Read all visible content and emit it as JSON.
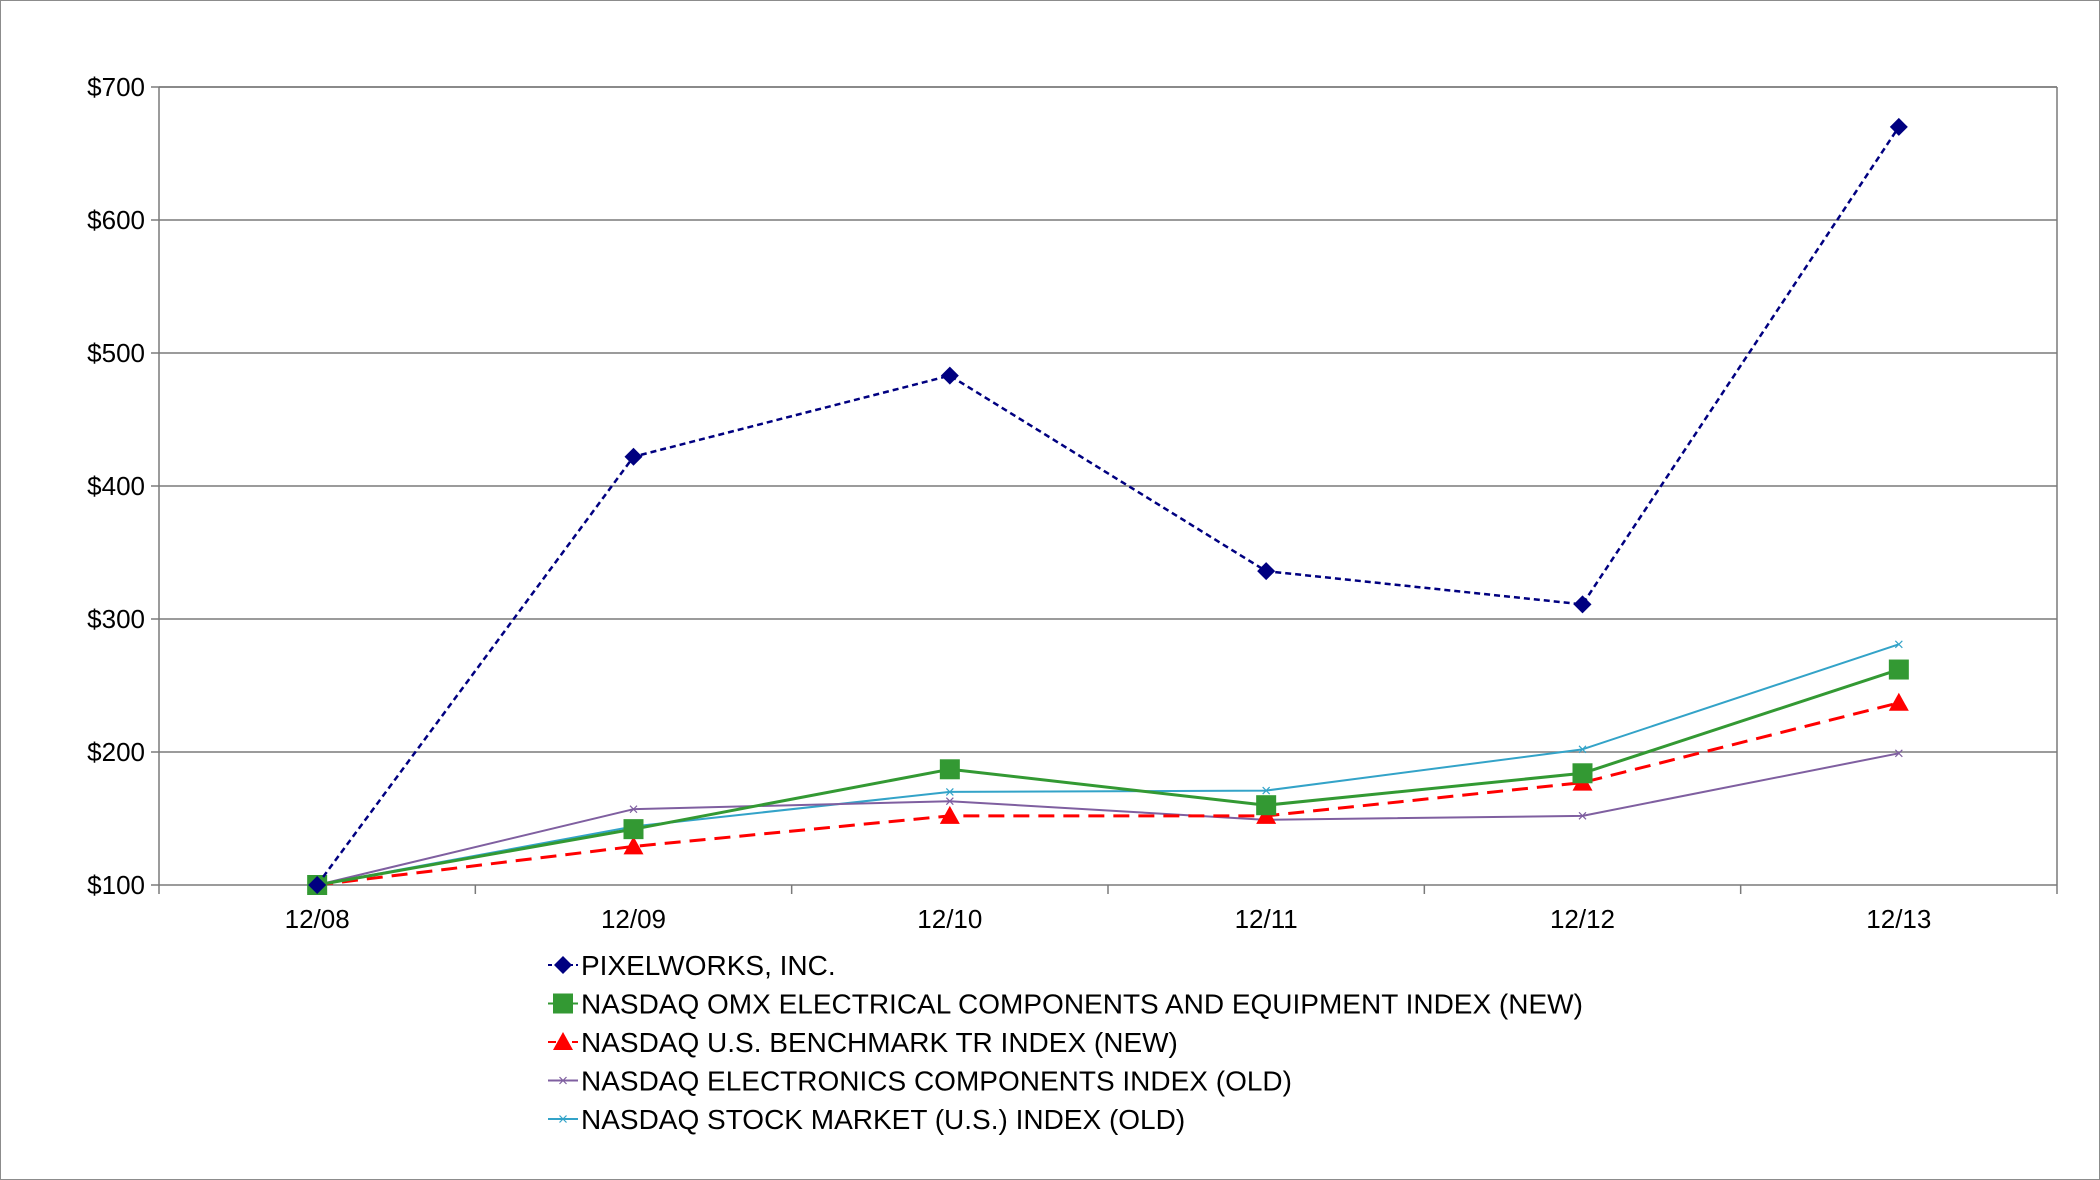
{
  "chart_data": {
    "type": "line",
    "title": "",
    "xlabel": "",
    "ylabel": "",
    "categories": [
      "12/08",
      "12/09",
      "12/10",
      "12/11",
      "12/12",
      "12/13"
    ],
    "y_tick_labels": [
      "$100",
      "$200",
      "$300",
      "$400",
      "$500",
      "$600",
      "$700"
    ],
    "y_ticks": [
      100,
      200,
      300,
      400,
      500,
      600,
      700
    ],
    "ylim": [
      100,
      700
    ],
    "grid": true,
    "legend_position": "bottom",
    "series": [
      {
        "name": "PIXELWORKS, INC.",
        "values": [
          100,
          422,
          483,
          336,
          311,
          670
        ],
        "color": "#000080",
        "line_style": "dotted",
        "marker": "diamond"
      },
      {
        "name": "NASDAQ OMX ELECTRICAL COMPONENTS AND EQUIPMENT INDEX (NEW)",
        "values": [
          100,
          142,
          187,
          160,
          184,
          262
        ],
        "color": "#339933",
        "line_style": "solid",
        "marker": "square"
      },
      {
        "name": "NASDAQ U.S. BENCHMARK TR INDEX (NEW)",
        "values": [
          100,
          129,
          152,
          152,
          177,
          237
        ],
        "color": "#ff0000",
        "line_style": "dashed",
        "marker": "triangle"
      },
      {
        "name": "NASDAQ ELECTRONICS COMPONENTS INDEX (OLD)",
        "values": [
          100,
          157,
          163,
          149,
          152,
          199
        ],
        "color": "#7f5fa0",
        "line_style": "solid",
        "marker": "x"
      },
      {
        "name": "NASDAQ STOCK MARKET (U.S.) INDEX (OLD)",
        "values": [
          100,
          144,
          170,
          171,
          202,
          281
        ],
        "color": "#33a3c8",
        "line_style": "solid",
        "marker": "x"
      }
    ]
  }
}
